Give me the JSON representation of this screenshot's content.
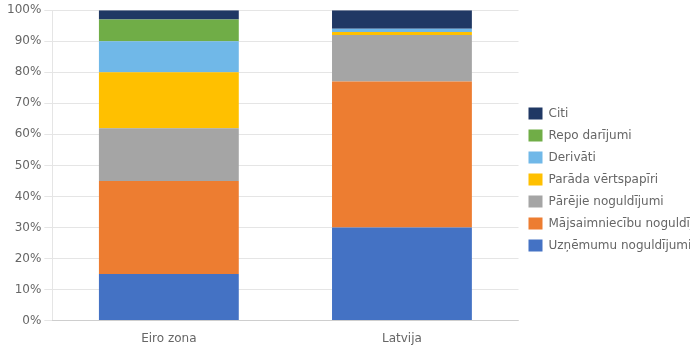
{
  "chart_data": {
    "type": "bar",
    "stacked": true,
    "categories": [
      "Eiro zona",
      "Latvija"
    ],
    "series": [
      {
        "name": "Uzņēmumu noguldījumi",
        "color": "#4472C4",
        "values": [
          15,
          30
        ]
      },
      {
        "name": "Mājsaimniecību noguldījumi",
        "color": "#ED7D31",
        "values": [
          30,
          47
        ]
      },
      {
        "name": "Pārējie noguldījumi",
        "color": "#A5A5A5",
        "values": [
          17,
          15
        ]
      },
      {
        "name": "Parāda vērtspapīri",
        "color": "#FFC000",
        "values": [
          18,
          1
        ]
      },
      {
        "name": "Derivāti",
        "color": "#70B8E8",
        "values": [
          10,
          1
        ]
      },
      {
        "name": "Repo darījumi",
        "color": "#70AD47",
        "values": [
          7,
          0
        ]
      },
      {
        "name": "Citi",
        "color": "#203864",
        "values": [
          3,
          6
        ]
      }
    ],
    "ylim": [
      0,
      100
    ],
    "yticks": [
      {
        "value": 0,
        "label": "0%"
      },
      {
        "value": 10,
        "label": "10%"
      },
      {
        "value": 20,
        "label": "20%"
      },
      {
        "value": 30,
        "label": "30%"
      },
      {
        "value": 40,
        "label": "40%"
      },
      {
        "value": 50,
        "label": "50%"
      },
      {
        "value": 60,
        "label": "60%"
      },
      {
        "value": 70,
        "label": "70%"
      },
      {
        "value": 80,
        "label": "80%"
      },
      {
        "value": 90,
        "label": "90%"
      },
      {
        "value": 100,
        "label": "100%"
      }
    ],
    "grid": true,
    "legend": "right"
  }
}
